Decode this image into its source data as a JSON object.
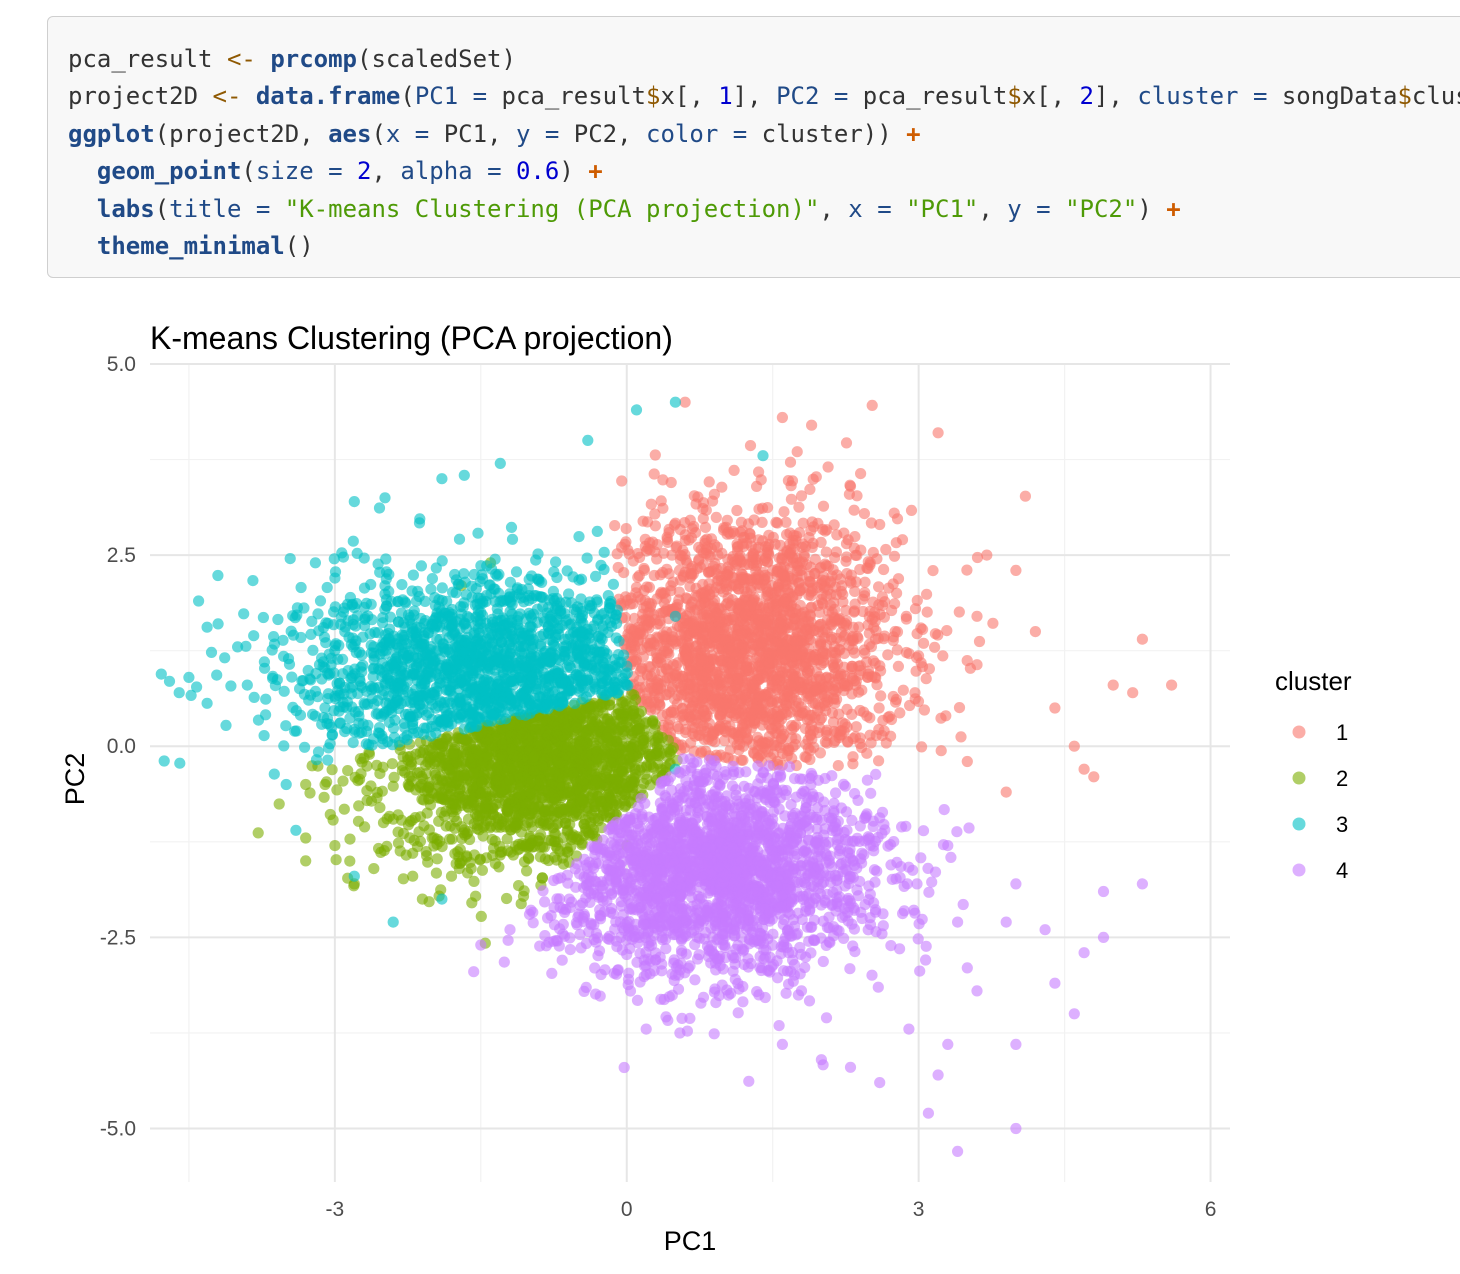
{
  "code": {
    "language": "r",
    "lines": [
      [
        {
          "t": "pca_result ",
          "c": ""
        },
        {
          "t": "<-",
          "c": "tk-op"
        },
        {
          "t": " ",
          "c": ""
        },
        {
          "t": "prcomp",
          "c": "tk-fn"
        },
        {
          "t": "(scaledSet)",
          "c": ""
        }
      ],
      [
        {
          "t": "project2D ",
          "c": ""
        },
        {
          "t": "<-",
          "c": "tk-op"
        },
        {
          "t": " ",
          "c": ""
        },
        {
          "t": "data.frame",
          "c": "tk-fn"
        },
        {
          "t": "(",
          "c": ""
        },
        {
          "t": "PC1 =",
          "c": "tk-arg"
        },
        {
          "t": " pca_result",
          "c": ""
        },
        {
          "t": "$",
          "c": "tk-op"
        },
        {
          "t": "x[, ",
          "c": ""
        },
        {
          "t": "1",
          "c": "tk-num"
        },
        {
          "t": "], ",
          "c": ""
        },
        {
          "t": "PC2 =",
          "c": "tk-arg"
        },
        {
          "t": " pca_result",
          "c": ""
        },
        {
          "t": "$",
          "c": "tk-op"
        },
        {
          "t": "x[, ",
          "c": ""
        },
        {
          "t": "2",
          "c": "tk-num"
        },
        {
          "t": "], ",
          "c": ""
        },
        {
          "t": "cluster =",
          "c": "tk-arg"
        },
        {
          "t": " songData",
          "c": ""
        },
        {
          "t": "$",
          "c": "tk-op"
        },
        {
          "t": "clust",
          "c": ""
        }
      ],
      [
        {
          "t": "ggplot",
          "c": "tk-fn"
        },
        {
          "t": "(project2D, ",
          "c": ""
        },
        {
          "t": "aes",
          "c": "tk-fn"
        },
        {
          "t": "(",
          "c": ""
        },
        {
          "t": "x =",
          "c": "tk-arg"
        },
        {
          "t": " PC1, ",
          "c": ""
        },
        {
          "t": "y =",
          "c": "tk-arg"
        },
        {
          "t": " PC2, ",
          "c": ""
        },
        {
          "t": "color =",
          "c": "tk-arg"
        },
        {
          "t": " cluster)) ",
          "c": ""
        },
        {
          "t": "+",
          "c": "tk-plus"
        }
      ],
      [
        {
          "t": "  ",
          "c": ""
        },
        {
          "t": "geom_point",
          "c": "tk-fn"
        },
        {
          "t": "(",
          "c": ""
        },
        {
          "t": "size =",
          "c": "tk-arg"
        },
        {
          "t": " ",
          "c": ""
        },
        {
          "t": "2",
          "c": "tk-num"
        },
        {
          "t": ", ",
          "c": ""
        },
        {
          "t": "alpha =",
          "c": "tk-arg"
        },
        {
          "t": " ",
          "c": ""
        },
        {
          "t": "0.6",
          "c": "tk-num"
        },
        {
          "t": ") ",
          "c": ""
        },
        {
          "t": "+",
          "c": "tk-plus"
        }
      ],
      [
        {
          "t": "  ",
          "c": ""
        },
        {
          "t": "labs",
          "c": "tk-fn"
        },
        {
          "t": "(",
          "c": ""
        },
        {
          "t": "title =",
          "c": "tk-arg"
        },
        {
          "t": " ",
          "c": ""
        },
        {
          "t": "\"K-means Clustering (PCA projection)\"",
          "c": "tk-str"
        },
        {
          "t": ", ",
          "c": ""
        },
        {
          "t": "x =",
          "c": "tk-arg"
        },
        {
          "t": " ",
          "c": ""
        },
        {
          "t": "\"PC1\"",
          "c": "tk-str"
        },
        {
          "t": ", ",
          "c": ""
        },
        {
          "t": "y =",
          "c": "tk-arg"
        },
        {
          "t": " ",
          "c": ""
        },
        {
          "t": "\"PC2\"",
          "c": "tk-str"
        },
        {
          "t": ") ",
          "c": ""
        },
        {
          "t": "+",
          "c": "tk-plus"
        }
      ],
      [
        {
          "t": "  ",
          "c": ""
        },
        {
          "t": "theme_minimal",
          "c": "tk-fn"
        },
        {
          "t": "()",
          "c": ""
        }
      ]
    ]
  },
  "chart_data": {
    "type": "scatter",
    "title": "K-means Clustering (PCA projection)",
    "xlabel": "PC1",
    "ylabel": "PC2",
    "xlim": [
      -4.9,
      6.2
    ],
    "ylim": [
      -5.7,
      5.0
    ],
    "x_ticks": [
      -3,
      0,
      3,
      6
    ],
    "x_tick_labels": [
      "-3",
      "0",
      "3",
      "6"
    ],
    "y_ticks": [
      -5,
      -2.5,
      0,
      2.5,
      5
    ],
    "y_tick_labels": [
      "-5.0",
      "-2.5",
      "0.0",
      "2.5",
      "5.0"
    ],
    "grid": true,
    "point_alpha": 0.6,
    "legend": {
      "title": "cluster",
      "position": "right"
    },
    "series": [
      {
        "name": "1",
        "color": "#F8766D",
        "center": [
          1.2,
          1.2
        ],
        "spread": [
          0.8,
          0.95
        ],
        "n": 2200,
        "outliers": [
          [
            5.6,
            0.8
          ],
          [
            5.3,
            1.4
          ],
          [
            5.0,
            0.8
          ],
          [
            4.8,
            -0.4
          ],
          [
            4.6,
            0.0
          ],
          [
            4.4,
            0.5
          ],
          [
            4.2,
            1.5
          ],
          [
            4.0,
            2.3
          ],
          [
            3.7,
            2.5
          ],
          [
            3.2,
            4.1
          ],
          [
            1.9,
            4.2
          ],
          [
            1.6,
            4.3
          ],
          [
            0.6,
            4.5
          ],
          [
            3.9,
            -0.6
          ],
          [
            3.5,
            -0.2
          ],
          [
            3.6,
            1.7
          ],
          [
            2.6,
            2.9
          ],
          [
            2.3,
            3.4
          ],
          [
            4.7,
            -0.3
          ],
          [
            5.2,
            0.7
          ]
        ]
      },
      {
        "name": "2",
        "color": "#7CAE00",
        "center": [
          -0.9,
          -0.1
        ],
        "spread": [
          0.8,
          0.7
        ],
        "n": 1900,
        "outliers": [
          [
            -3.3,
            -0.5
          ],
          [
            -3.1,
            -0.5
          ],
          [
            -3.3,
            -1.2
          ],
          [
            -3.3,
            -1.5
          ],
          [
            -3.0,
            -1.3
          ],
          [
            -2.8,
            -1.8
          ],
          [
            -2.6,
            -1.6
          ],
          [
            -2.2,
            -1.7
          ],
          [
            -2.1,
            -2.0
          ],
          [
            -2.2,
            -1.4
          ],
          [
            -2.0,
            -1.2
          ],
          [
            -1.6,
            -1.6
          ],
          [
            -1.7,
            2.1
          ],
          [
            -1.4,
            2.4
          ],
          [
            0.0,
            -1.3
          ],
          [
            -2.5,
            -1.0
          ]
        ]
      },
      {
        "name": "3",
        "color": "#00BFC4",
        "center": [
          -1.2,
          0.9
        ],
        "spread": [
          1.1,
          0.7
        ],
        "n": 1600,
        "outliers": [
          [
            -4.7,
            0.85
          ],
          [
            -4.6,
            0.7
          ],
          [
            -4.5,
            0.9
          ],
          [
            -4.4,
            1.9
          ],
          [
            -4.2,
            1.6
          ],
          [
            -4.0,
            1.3
          ],
          [
            -3.9,
            0.8
          ],
          [
            -3.5,
            -0.5
          ],
          [
            -3.4,
            -1.1
          ],
          [
            -3.2,
            2.4
          ],
          [
            -3.0,
            2.2
          ],
          [
            -2.8,
            3.2
          ],
          [
            -1.9,
            3.5
          ],
          [
            -1.3,
            3.7
          ],
          [
            -0.4,
            4.0
          ],
          [
            0.1,
            4.4
          ],
          [
            0.5,
            4.5
          ],
          [
            1.4,
            3.8
          ],
          [
            -2.8,
            -1.7
          ],
          [
            -2.4,
            -2.3
          ],
          [
            -1.9,
            -2.0
          ],
          [
            0.5,
            1.7
          ],
          [
            0.5,
            -0.3
          ]
        ]
      },
      {
        "name": "4",
        "color": "#C77CFF",
        "center": [
          0.9,
          -1.6
        ],
        "spread": [
          0.85,
          0.7
        ],
        "n": 2200,
        "outliers": [
          [
            3.4,
            -5.3
          ],
          [
            4.0,
            -5.0
          ],
          [
            3.1,
            -4.8
          ],
          [
            3.2,
            -4.3
          ],
          [
            2.6,
            -4.4
          ],
          [
            2.3,
            -4.2
          ],
          [
            3.3,
            -3.9
          ],
          [
            4.0,
            -3.9
          ],
          [
            4.6,
            -3.5
          ],
          [
            4.4,
            -3.1
          ],
          [
            3.6,
            -3.2
          ],
          [
            5.3,
            -1.8
          ],
          [
            4.9,
            -1.9
          ],
          [
            4.9,
            -2.5
          ],
          [
            4.7,
            -2.7
          ],
          [
            4.3,
            -2.4
          ],
          [
            3.9,
            -2.3
          ],
          [
            3.4,
            -2.3
          ],
          [
            3.3,
            -1.3
          ],
          [
            4.0,
            -1.8
          ],
          [
            2.0,
            -4.1
          ],
          [
            1.6,
            -3.9
          ],
          [
            0.2,
            -3.7
          ],
          [
            -1.0,
            -2.2
          ],
          [
            -1.2,
            -2.4
          ],
          [
            -1.5,
            -2.6
          ],
          [
            3.5,
            -2.9
          ],
          [
            2.9,
            -3.7
          ]
        ]
      }
    ]
  }
}
